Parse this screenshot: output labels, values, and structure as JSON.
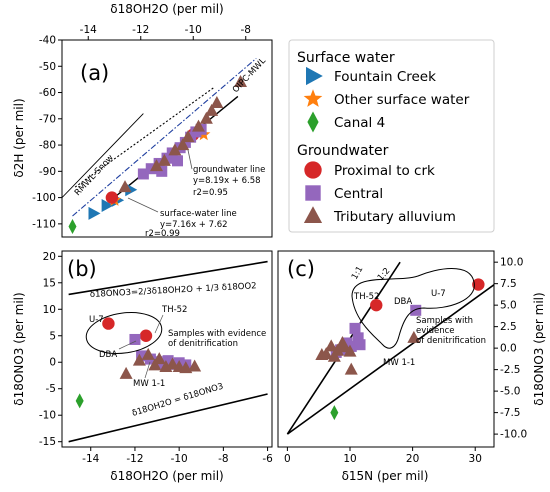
{
  "colors": {
    "fountain_creek": "#1f77b4",
    "other_surface": "#ff7f0e",
    "canal": "#2ca02c",
    "proximal": "#d62728",
    "central": "#9467bd",
    "tributary": "#8c564b",
    "mwl": "#1f3fa0"
  },
  "legend": {
    "surface_header": "Surface water",
    "groundwater_header": "Groundwater",
    "items": [
      {
        "label": "Fountain Creek",
        "marker": "triangle-right",
        "color": "#1f77b4"
      },
      {
        "label": "Other surface water",
        "marker": "star",
        "color": "#ff7f0e"
      },
      {
        "label": "Canal 4",
        "marker": "thin-diamond",
        "color": "#2ca02c"
      },
      {
        "label": "Proximal to crk",
        "marker": "circle",
        "color": "#d62728"
      },
      {
        "label": "Central",
        "marker": "square",
        "color": "#9467bd"
      },
      {
        "label": "Tributary alluvium",
        "marker": "triangle-up",
        "color": "#8c564b"
      }
    ]
  },
  "chart_data": [
    {
      "panel": "(a)",
      "type": "scatter",
      "xlabel": "δ18OH2O (per mil)",
      "xlabel_position": "top",
      "ylabel": "δ2H (per mil)",
      "xlim": [
        -15,
        -7
      ],
      "ylim": [
        -115,
        -40
      ],
      "xticks": [
        -14,
        -12,
        -10,
        -8
      ],
      "yticks": [
        -110,
        -100,
        -90,
        -80,
        -70,
        -60,
        -50,
        -40
      ],
      "lines": [
        {
          "name": "RMWL-Snow",
          "x": [
            -15,
            -11.9
          ],
          "y": [
            -100,
            -68
          ]
        },
        {
          "name": "OIPC-MWL",
          "x": [
            -14.6,
            -7.6
          ],
          "y": [
            -107,
            -47
          ]
        },
        {
          "name": "groundwater line",
          "x": [
            -13.2,
            -8.3
          ],
          "y": [
            -101.5,
            -61.5
          ]
        },
        {
          "name": "surface-water line",
          "x": [
            -14.5,
            -9.2
          ],
          "y": [
            -96,
            -58
          ]
        }
      ],
      "annotations": [
        "RMWL-Snow",
        "OIPC-MWL",
        "groundwater line",
        "y=8.19x + 6.58",
        "r2=0.95",
        "surface-water line",
        "y=7.16x + 7.62",
        "r2=0.99"
      ],
      "series": [
        {
          "name": "Fountain Creek",
          "points": [
            [
              -13.8,
              -106
            ],
            [
              -13.3,
              -103
            ],
            [
              -12.9,
              -101
            ],
            [
              -12.4,
              -97
            ]
          ]
        },
        {
          "name": "Other surface water",
          "points": [
            [
              -13.0,
              -101
            ],
            [
              -9.6,
              -76
            ]
          ]
        },
        {
          "name": "Canal 4",
          "points": [
            [
              -14.6,
              -111
            ]
          ]
        },
        {
          "name": "Proximal to crk",
          "points": [
            [
              -13.1,
              -100
            ],
            [
              -10.0,
              -76
            ]
          ]
        },
        {
          "name": "Central",
          "points": [
            [
              -11.9,
              -91
            ],
            [
              -11.6,
              -89
            ],
            [
              -11.3,
              -87
            ],
            [
              -11.0,
              -85
            ],
            [
              -10.8,
              -83
            ],
            [
              -10.5,
              -81
            ],
            [
              -10.3,
              -79
            ],
            [
              -10.1,
              -77
            ],
            [
              -9.9,
              -75
            ],
            [
              -10.6,
              -86
            ],
            [
              -11.2,
              -90
            ],
            [
              -9.7,
              -74
            ]
          ]
        },
        {
          "name": "Tributary alluvium",
          "points": [
            [
              -12.6,
              -96
            ],
            [
              -11.4,
              -88
            ],
            [
              -11.1,
              -86
            ],
            [
              -10.7,
              -82
            ],
            [
              -10.4,
              -80
            ],
            [
              -10.2,
              -77
            ],
            [
              -9.8,
              -73
            ],
            [
              -9.5,
              -70
            ],
            [
              -9.3,
              -67
            ],
            [
              -9.1,
              -64
            ],
            [
              -8.2,
              -56
            ]
          ]
        }
      ]
    },
    {
      "panel": "(b)",
      "type": "scatter",
      "xlabel": "δ18OH2O (per mil)",
      "ylabel": "δ18ONO3 (per mil)",
      "xlim": [
        -15.3,
        -5.8
      ],
      "ylim": [
        -16,
        21
      ],
      "xticks": [
        -14,
        -12,
        -10,
        -8,
        -6
      ],
      "yticks": [
        -15,
        -10,
        -5,
        0,
        5,
        10,
        15,
        20
      ],
      "lines": [
        {
          "name": "δ18ONO3=2/3δ18OH2O + 1/3 δ18OO2",
          "x": [
            -15,
            -6
          ],
          "y": [
            12.8,
            19
          ]
        },
        {
          "name": "δ18OH2O = δ18ONO3",
          "x": [
            -15,
            -6
          ],
          "y": [
            -15,
            -6
          ]
        }
      ],
      "annotations": [
        "δ18ONO3=2/3δ18OH2O + 1/3 δ18OO2",
        "δ18OH2O = δ18ONO3",
        "U-7",
        "TH-52",
        "DBA",
        "MW 1-1",
        "Samples with evidence",
        "of denitrification"
      ],
      "series": [
        {
          "name": "Canal 4",
          "points": [
            [
              -14.5,
              -7.3
            ]
          ]
        },
        {
          "name": "Proximal to crk",
          "points": [
            [
              -13.2,
              7.3
            ],
            [
              -11.5,
              5.0
            ]
          ]
        },
        {
          "name": "Central",
          "points": [
            [
              -12.0,
              4.3
            ],
            [
              -11.7,
              1.2
            ],
            [
              -11.3,
              0.6
            ],
            [
              -11.0,
              0.1
            ],
            [
              -10.7,
              -0.3
            ],
            [
              -10.5,
              0.3
            ],
            [
              -10.2,
              -0.4
            ],
            [
              -10.0,
              -0.1
            ],
            [
              -9.7,
              -0.5
            ]
          ]
        },
        {
          "name": "Tributary alluvium",
          "points": [
            [
              -12.4,
              -2.2
            ],
            [
              -11.8,
              0.3
            ],
            [
              -11.4,
              1.4
            ],
            [
              -11.1,
              -0.6
            ],
            [
              -10.9,
              0.6
            ],
            [
              -10.6,
              -0.9
            ],
            [
              -10.3,
              -0.4
            ],
            [
              -10.0,
              -0.9
            ],
            [
              -9.7,
              -1.1
            ],
            [
              -9.3,
              -0.8
            ]
          ]
        }
      ]
    },
    {
      "panel": "(c)",
      "type": "scatter",
      "xlabel": "δ15N (per mil)",
      "ylabel": "δ18ONO3 (per mil)",
      "ylabel_position": "right",
      "xlim": [
        -1.5,
        33
      ],
      "ylim": [
        -11.5,
        11.3
      ],
      "xticks": [
        0,
        10,
        20,
        30
      ],
      "yticks": [
        -10.0,
        -7.5,
        -5.0,
        -2.5,
        0.0,
        2.5,
        5.0,
        7.5,
        10.0
      ],
      "lines": [
        {
          "name": "1:1",
          "x": [
            0,
            18
          ],
          "y": [
            -10,
            10
          ]
        },
        {
          "name": "1:2",
          "x": [
            0,
            38
          ],
          "y": [
            -10,
            10
          ]
        }
      ],
      "annotations": [
        "1:1",
        "1:2",
        "TH-52",
        "DBA",
        "U-7",
        "MW 1-1",
        "Samples with",
        "evidence",
        "of denitrification"
      ],
      "series": [
        {
          "name": "Canal 4",
          "points": [
            [
              7.5,
              -7.5
            ]
          ]
        },
        {
          "name": "Proximal to crk",
          "points": [
            [
              14.2,
              5.0
            ],
            [
              30.5,
              7.4
            ]
          ]
        },
        {
          "name": "Central",
          "points": [
            [
              20.5,
              4.4
            ],
            [
              10.8,
              2.3
            ],
            [
              11.3,
              1.2
            ],
            [
              9.5,
              0.6
            ],
            [
              10.2,
              0.2
            ],
            [
              8.5,
              -0.2
            ],
            [
              7.8,
              -0.5
            ],
            [
              11.6,
              0.4
            ]
          ]
        },
        {
          "name": "Tributary alluvium",
          "points": [
            [
              5.5,
              -0.8
            ],
            [
              6.2,
              -0.7
            ],
            [
              7.0,
              0.2
            ],
            [
              8.0,
              -0.3
            ],
            [
              9.0,
              0.1
            ],
            [
              10.0,
              -0.4
            ],
            [
              10.2,
              -2.5
            ],
            [
              20.2,
              1.2
            ],
            [
              7.5,
              -1.0
            ],
            [
              8.8,
              0.6
            ]
          ]
        }
      ]
    }
  ],
  "panels": {
    "a": {
      "label": "(a)",
      "xlabel_top": "δ18OH2O (per mil)",
      "ylabel": "δ2H (per mil)",
      "ann_rmwl": "RMWL-Snow",
      "ann_oipc": "OIPC-MWL",
      "ann_gw1": "groundwater line",
      "ann_gw2": "y=8.19x + 6.58",
      "ann_gw3": "r2=0.95",
      "ann_sw1": "surface-water line",
      "ann_sw2": "y=7.16x + 7.62",
      "ann_sw3": "r2=0.99"
    },
    "b": {
      "label": "(b)",
      "xlabel": "δ18OH2O (per mil)",
      "ylabel": "δ18ONO3 (per mil)",
      "eq_top": "δ18ONO3=2/3δ18OH2O + 1/3 δ18OO2",
      "eq_bottom": "δ18OH2O = δ18ONO3",
      "lab_u7": "U-7",
      "lab_th52": "TH-52",
      "lab_dba": "DBA",
      "lab_mw": "MW 1-1",
      "denit1": "Samples with evidence",
      "denit2": "of denitrification"
    },
    "c": {
      "label": "(c)",
      "xlabel": "δ15N (per mil)",
      "ylabel": "δ18ONO3 (per mil)",
      "lab_11": "1:1",
      "lab_12": "1:2",
      "lab_th52": "TH-52",
      "lab_dba": "DBA",
      "lab_u7": "U-7",
      "lab_mw": "MW 1-1",
      "denit1": "Samples with",
      "denit2": "evidence",
      "denit3": "of denitrification"
    }
  }
}
